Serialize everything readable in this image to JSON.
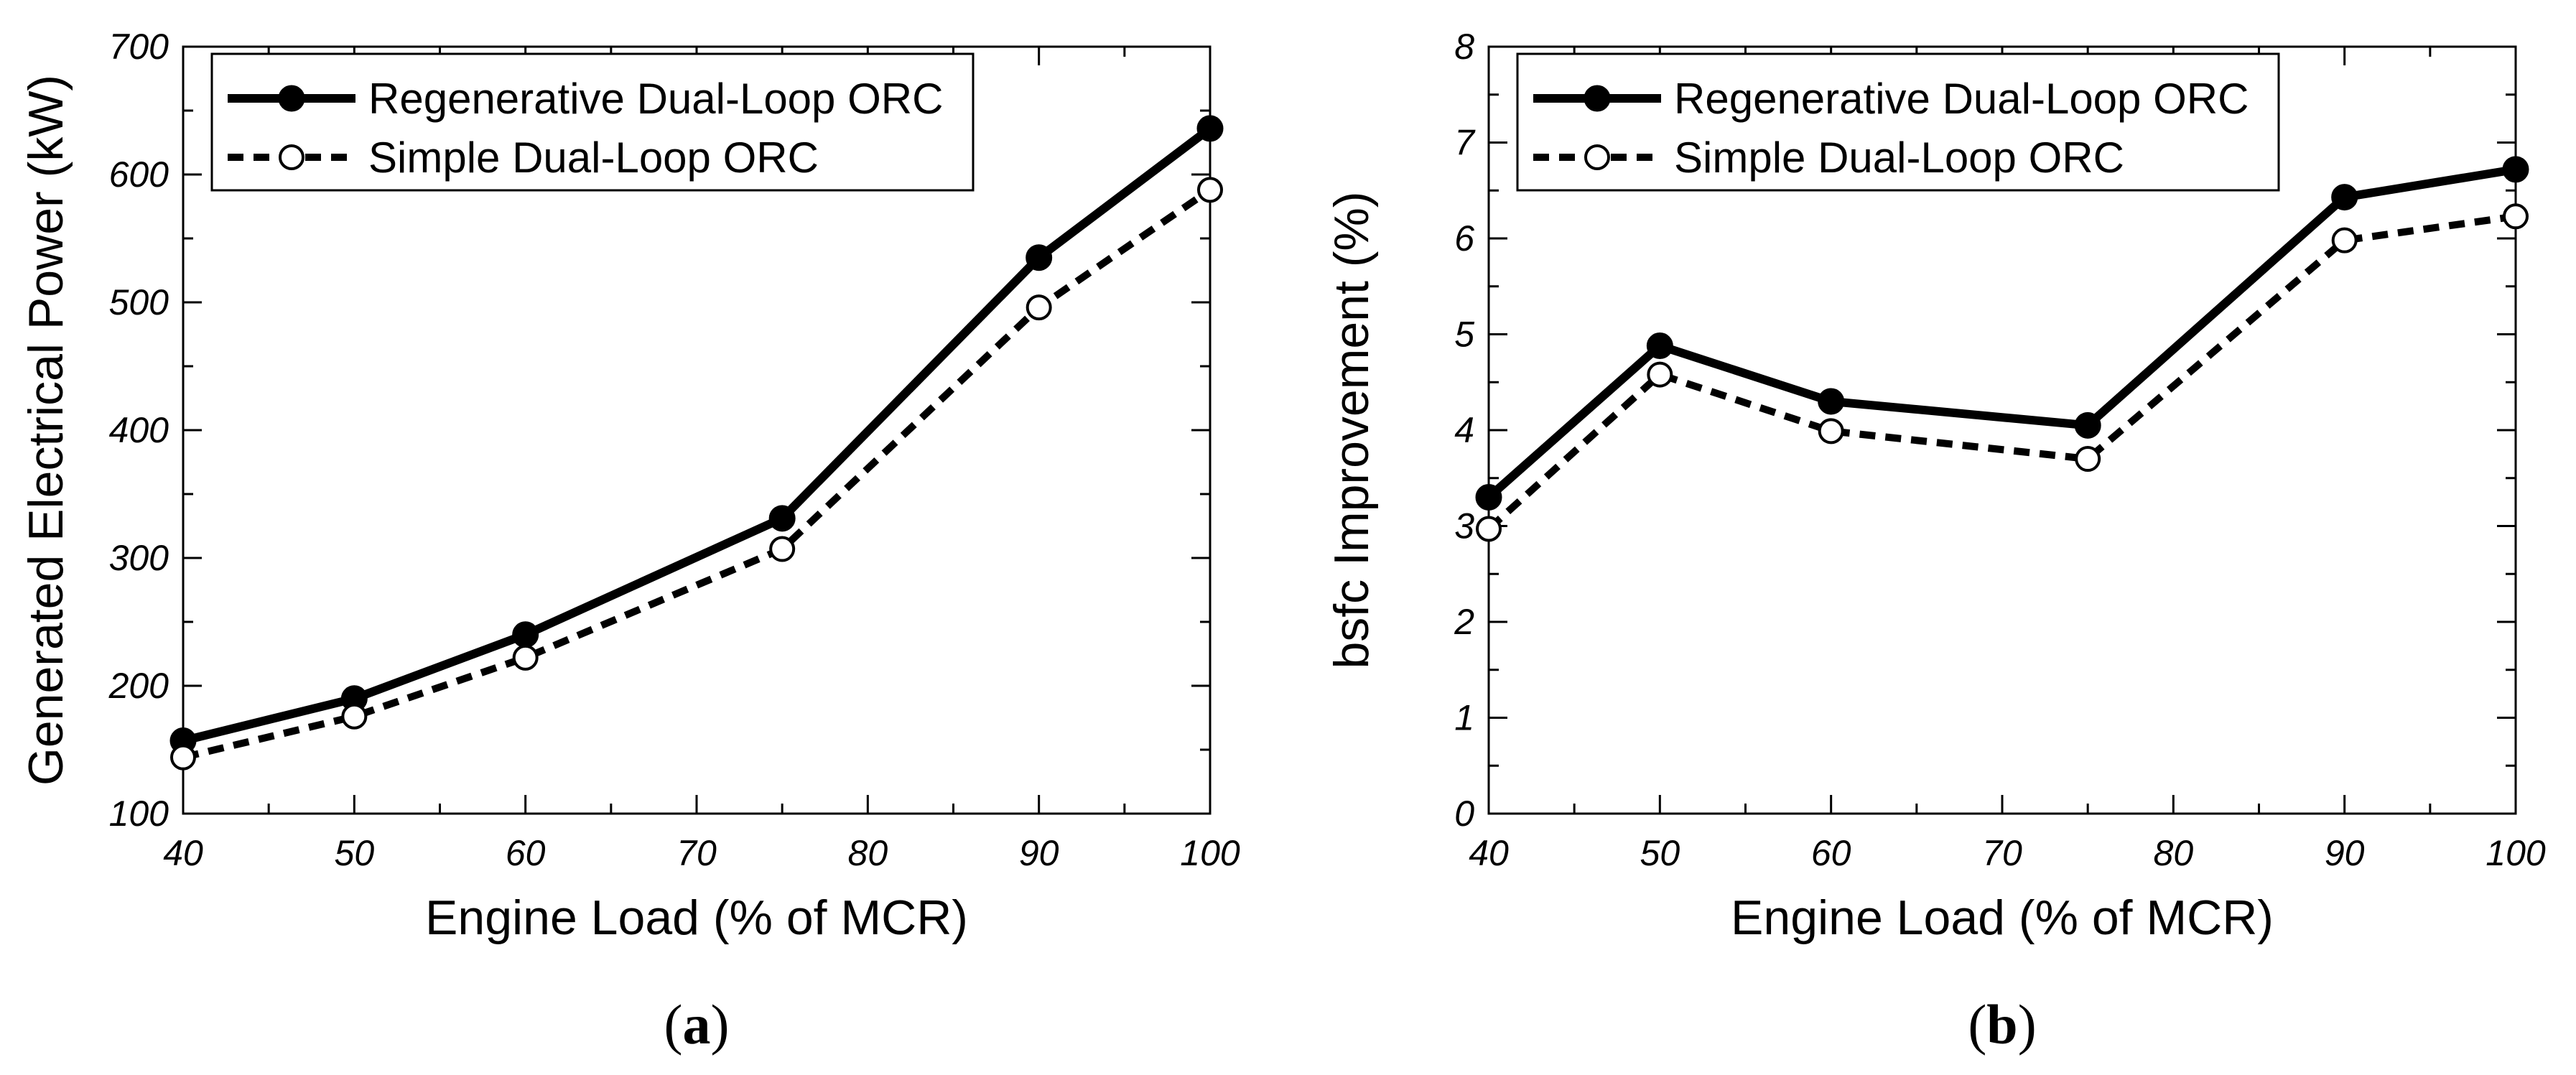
{
  "chart_data": [
    {
      "type": "line",
      "title": "",
      "caption": {
        "open": "(",
        "letter": "a",
        "close": ")"
      },
      "xlabel": "Engine Load (% of MCR)",
      "ylabel": "Generated Electrical Power (kW)",
      "xlim": [
        40,
        100
      ],
      "ylim": [
        100,
        700
      ],
      "xticks": [
        40,
        50,
        60,
        70,
        80,
        90,
        100
      ],
      "yticks": [
        100,
        200,
        300,
        400,
        500,
        600,
        700
      ],
      "grid": false,
      "legend_position": "top-left",
      "x": [
        40,
        50,
        60,
        75,
        90,
        100
      ],
      "series": [
        {
          "name": "Regenerative Dual-Loop ORC",
          "style": "solid",
          "marker": "filled-circle",
          "color": "#000000",
          "values": [
            157,
            190,
            240,
            331,
            535,
            636
          ]
        },
        {
          "name": "Simple Dual-Loop ORC",
          "style": "dashed",
          "marker": "open-circle",
          "color": "#000000",
          "values": [
            144,
            176,
            222,
            307,
            496,
            588
          ]
        }
      ]
    },
    {
      "type": "line",
      "title": "",
      "caption": {
        "open": "(",
        "letter": "b",
        "close": ")"
      },
      "xlabel": "Engine Load (% of MCR)",
      "ylabel": "bsfc Improvement (%)",
      "xlim": [
        40,
        100
      ],
      "ylim": [
        0,
        8
      ],
      "xticks": [
        40,
        50,
        60,
        70,
        80,
        90,
        100
      ],
      "yticks": [
        0,
        1,
        2,
        3,
        4,
        5,
        6,
        7,
        8
      ],
      "grid": false,
      "legend_position": "top-left",
      "x": [
        40,
        50,
        60,
        75,
        90,
        100
      ],
      "series": [
        {
          "name": "Regenerative Dual-Loop ORC",
          "style": "solid",
          "marker": "filled-circle",
          "color": "#000000",
          "values": [
            3.3,
            4.88,
            4.3,
            4.05,
            6.43,
            6.72
          ]
        },
        {
          "name": "Simple Dual-Loop ORC",
          "style": "dashed",
          "marker": "open-circle",
          "color": "#000000",
          "values": [
            2.97,
            4.58,
            3.99,
            3.7,
            5.98,
            6.23
          ]
        }
      ]
    }
  ]
}
